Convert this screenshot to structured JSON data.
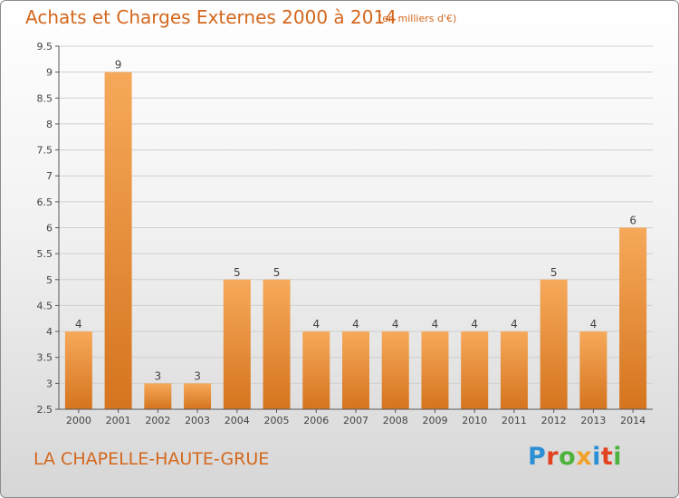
{
  "chart_data": {
    "type": "bar",
    "title": "Achats et Charges Externes 2000 à 2014",
    "subtitle": "(en milliers d'€)",
    "categories": [
      "2000",
      "2001",
      "2002",
      "2003",
      "2004",
      "2005",
      "2006",
      "2007",
      "2008",
      "2009",
      "2010",
      "2011",
      "2012",
      "2013",
      "2014"
    ],
    "values": [
      4,
      9,
      3,
      3,
      5,
      5,
      4,
      4,
      4,
      4,
      4,
      4,
      5,
      4,
      6
    ],
    "ylim": [
      2.5,
      9.5
    ],
    "yticks": [
      2.5,
      3,
      3.5,
      4,
      4.5,
      5,
      5.5,
      6,
      6.5,
      7,
      7.5,
      8,
      8.5,
      9,
      9.5
    ],
    "ytick_labels": [
      "2.5",
      "3",
      "3.5",
      "4",
      "4.5",
      "5",
      "5.5",
      "6",
      "6.5",
      "7",
      "7.5",
      "8",
      "8.5",
      "9",
      "9.5"
    ],
    "grid": true,
    "bar_color_light": "#f6a95a",
    "bar_color_dark": "#d5741e"
  },
  "footer": {
    "commune": "LA CHAPELLE-HAUTE-GRUE"
  },
  "logo": {
    "text": "Proxiti",
    "colors": [
      "#2b8fd6",
      "#e2421f",
      "#4db33d",
      "#f2a12a",
      "#2b8fd6",
      "#e2421f",
      "#4db33d"
    ]
  },
  "colors": {
    "title": "#d4671c",
    "axis": "#555555",
    "grid": "#cfcfcf"
  }
}
